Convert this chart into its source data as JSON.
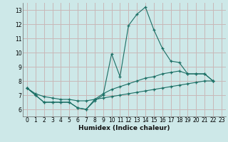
{
  "xlabel": "Humidex (Indice chaleur)",
  "background_color": "#cde8e8",
  "grid_color": "#c8b8b8",
  "line_color": "#1a6e64",
  "xlim": [
    -0.5,
    23.5
  ],
  "ylim": [
    5.5,
    13.5
  ],
  "xticks": [
    0,
    1,
    2,
    3,
    4,
    5,
    6,
    7,
    8,
    9,
    10,
    11,
    12,
    13,
    14,
    15,
    16,
    17,
    18,
    19,
    20,
    21,
    22,
    23
  ],
  "yticks": [
    6,
    7,
    8,
    9,
    10,
    11,
    12,
    13
  ],
  "series": [
    {
      "x": [
        0,
        1,
        2,
        3,
        4,
        5,
        6,
        7,
        8,
        9,
        10,
        11,
        12,
        13,
        14,
        15,
        16,
        17,
        18,
        19,
        20,
        21,
        22
      ],
      "y": [
        7.5,
        7.0,
        6.5,
        6.5,
        6.5,
        6.5,
        6.1,
        6.0,
        6.6,
        7.0,
        9.9,
        8.3,
        11.9,
        12.7,
        13.2,
        11.6,
        10.3,
        9.4,
        9.3,
        8.5,
        8.5,
        8.5,
        8.0
      ]
    },
    {
      "x": [
        0,
        1,
        2,
        3,
        4,
        5,
        6,
        7,
        8,
        9,
        10,
        11,
        12,
        13,
        14,
        15,
        16,
        17,
        18,
        19,
        20,
        21,
        22
      ],
      "y": [
        7.5,
        7.0,
        6.5,
        6.5,
        6.5,
        6.5,
        6.1,
        6.0,
        6.7,
        7.1,
        7.4,
        7.6,
        7.8,
        8.0,
        8.2,
        8.3,
        8.5,
        8.6,
        8.7,
        8.5,
        8.5,
        8.5,
        8.0
      ]
    },
    {
      "x": [
        0,
        1,
        2,
        3,
        4,
        5,
        6,
        7,
        8,
        9,
        10,
        11,
        12,
        13,
        14,
        15,
        16,
        17,
        18,
        19,
        20,
        21,
        22
      ],
      "y": [
        7.5,
        7.1,
        6.9,
        6.8,
        6.7,
        6.7,
        6.6,
        6.6,
        6.7,
        6.8,
        6.9,
        7.0,
        7.1,
        7.2,
        7.3,
        7.4,
        7.5,
        7.6,
        7.7,
        7.8,
        7.9,
        8.0,
        8.0
      ]
    }
  ]
}
